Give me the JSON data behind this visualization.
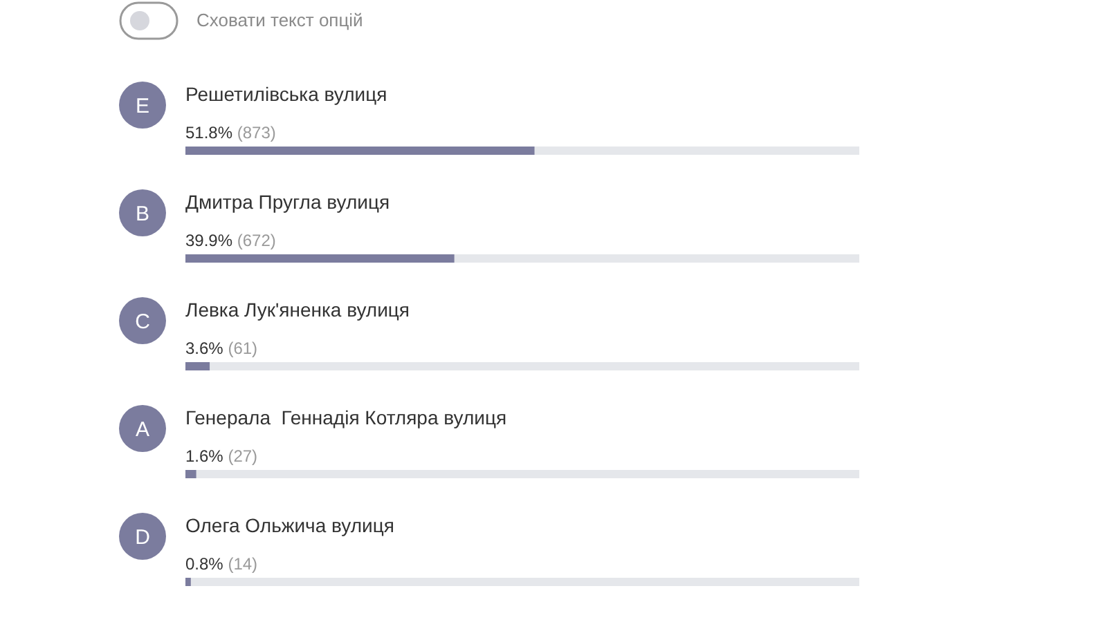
{
  "chart_data": {
    "type": "bar",
    "orientation": "horizontal",
    "categories": [
      "Решетилівська вулиця",
      "Дмитра Пругла вулиця",
      "Левка Лук'яненка вулиця",
      "Генерала  Геннадія Котляра вулиця",
      "Олега Ольжича вулиця"
    ],
    "values": [
      51.8,
      39.9,
      3.6,
      1.6,
      0.8
    ],
    "value_labels": [
      "51.8% (873)",
      "39.9% (672)",
      "3.6% (61)",
      "1.6% (27)",
      "0.8% (14)"
    ],
    "color": "#7b7c9e",
    "xlim": [
      0,
      100
    ],
    "tick_labels": "y",
    "annotations": [
      "Сховати текст опцій",
      "E",
      "B",
      "C",
      "A",
      "D"
    ]
  }
}
